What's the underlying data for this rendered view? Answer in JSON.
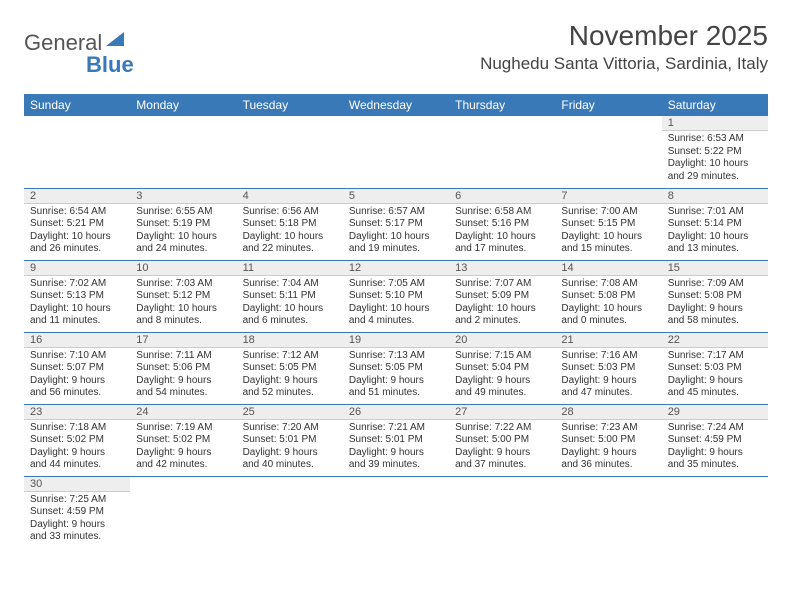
{
  "logo": {
    "part1": "General",
    "part2": "Blue"
  },
  "title": "November 2025",
  "location": "Nughedu Santa Vittoria, Sardinia, Italy",
  "colors": {
    "header_bg": "#3a79b7",
    "header_text": "#ffffff",
    "daynum_bg": "#eeeeee",
    "rule": "#3a79b7",
    "text": "#333333"
  },
  "weekdays": [
    "Sunday",
    "Monday",
    "Tuesday",
    "Wednesday",
    "Thursday",
    "Friday",
    "Saturday"
  ],
  "rows": [
    [
      null,
      null,
      null,
      null,
      null,
      null,
      {
        "n": "1",
        "sr": "Sunrise: 6:53 AM",
        "ss": "Sunset: 5:22 PM",
        "d1": "Daylight: 10 hours",
        "d2": "and 29 minutes."
      }
    ],
    [
      {
        "n": "2",
        "sr": "Sunrise: 6:54 AM",
        "ss": "Sunset: 5:21 PM",
        "d1": "Daylight: 10 hours",
        "d2": "and 26 minutes."
      },
      {
        "n": "3",
        "sr": "Sunrise: 6:55 AM",
        "ss": "Sunset: 5:19 PM",
        "d1": "Daylight: 10 hours",
        "d2": "and 24 minutes."
      },
      {
        "n": "4",
        "sr": "Sunrise: 6:56 AM",
        "ss": "Sunset: 5:18 PM",
        "d1": "Daylight: 10 hours",
        "d2": "and 22 minutes."
      },
      {
        "n": "5",
        "sr": "Sunrise: 6:57 AM",
        "ss": "Sunset: 5:17 PM",
        "d1": "Daylight: 10 hours",
        "d2": "and 19 minutes."
      },
      {
        "n": "6",
        "sr": "Sunrise: 6:58 AM",
        "ss": "Sunset: 5:16 PM",
        "d1": "Daylight: 10 hours",
        "d2": "and 17 minutes."
      },
      {
        "n": "7",
        "sr": "Sunrise: 7:00 AM",
        "ss": "Sunset: 5:15 PM",
        "d1": "Daylight: 10 hours",
        "d2": "and 15 minutes."
      },
      {
        "n": "8",
        "sr": "Sunrise: 7:01 AM",
        "ss": "Sunset: 5:14 PM",
        "d1": "Daylight: 10 hours",
        "d2": "and 13 minutes."
      }
    ],
    [
      {
        "n": "9",
        "sr": "Sunrise: 7:02 AM",
        "ss": "Sunset: 5:13 PM",
        "d1": "Daylight: 10 hours",
        "d2": "and 11 minutes."
      },
      {
        "n": "10",
        "sr": "Sunrise: 7:03 AM",
        "ss": "Sunset: 5:12 PM",
        "d1": "Daylight: 10 hours",
        "d2": "and 8 minutes."
      },
      {
        "n": "11",
        "sr": "Sunrise: 7:04 AM",
        "ss": "Sunset: 5:11 PM",
        "d1": "Daylight: 10 hours",
        "d2": "and 6 minutes."
      },
      {
        "n": "12",
        "sr": "Sunrise: 7:05 AM",
        "ss": "Sunset: 5:10 PM",
        "d1": "Daylight: 10 hours",
        "d2": "and 4 minutes."
      },
      {
        "n": "13",
        "sr": "Sunrise: 7:07 AM",
        "ss": "Sunset: 5:09 PM",
        "d1": "Daylight: 10 hours",
        "d2": "and 2 minutes."
      },
      {
        "n": "14",
        "sr": "Sunrise: 7:08 AM",
        "ss": "Sunset: 5:08 PM",
        "d1": "Daylight: 10 hours",
        "d2": "and 0 minutes."
      },
      {
        "n": "15",
        "sr": "Sunrise: 7:09 AM",
        "ss": "Sunset: 5:08 PM",
        "d1": "Daylight: 9 hours",
        "d2": "and 58 minutes."
      }
    ],
    [
      {
        "n": "16",
        "sr": "Sunrise: 7:10 AM",
        "ss": "Sunset: 5:07 PM",
        "d1": "Daylight: 9 hours",
        "d2": "and 56 minutes."
      },
      {
        "n": "17",
        "sr": "Sunrise: 7:11 AM",
        "ss": "Sunset: 5:06 PM",
        "d1": "Daylight: 9 hours",
        "d2": "and 54 minutes."
      },
      {
        "n": "18",
        "sr": "Sunrise: 7:12 AM",
        "ss": "Sunset: 5:05 PM",
        "d1": "Daylight: 9 hours",
        "d2": "and 52 minutes."
      },
      {
        "n": "19",
        "sr": "Sunrise: 7:13 AM",
        "ss": "Sunset: 5:05 PM",
        "d1": "Daylight: 9 hours",
        "d2": "and 51 minutes."
      },
      {
        "n": "20",
        "sr": "Sunrise: 7:15 AM",
        "ss": "Sunset: 5:04 PM",
        "d1": "Daylight: 9 hours",
        "d2": "and 49 minutes."
      },
      {
        "n": "21",
        "sr": "Sunrise: 7:16 AM",
        "ss": "Sunset: 5:03 PM",
        "d1": "Daylight: 9 hours",
        "d2": "and 47 minutes."
      },
      {
        "n": "22",
        "sr": "Sunrise: 7:17 AM",
        "ss": "Sunset: 5:03 PM",
        "d1": "Daylight: 9 hours",
        "d2": "and 45 minutes."
      }
    ],
    [
      {
        "n": "23",
        "sr": "Sunrise: 7:18 AM",
        "ss": "Sunset: 5:02 PM",
        "d1": "Daylight: 9 hours",
        "d2": "and 44 minutes."
      },
      {
        "n": "24",
        "sr": "Sunrise: 7:19 AM",
        "ss": "Sunset: 5:02 PM",
        "d1": "Daylight: 9 hours",
        "d2": "and 42 minutes."
      },
      {
        "n": "25",
        "sr": "Sunrise: 7:20 AM",
        "ss": "Sunset: 5:01 PM",
        "d1": "Daylight: 9 hours",
        "d2": "and 40 minutes."
      },
      {
        "n": "26",
        "sr": "Sunrise: 7:21 AM",
        "ss": "Sunset: 5:01 PM",
        "d1": "Daylight: 9 hours",
        "d2": "and 39 minutes."
      },
      {
        "n": "27",
        "sr": "Sunrise: 7:22 AM",
        "ss": "Sunset: 5:00 PM",
        "d1": "Daylight: 9 hours",
        "d2": "and 37 minutes."
      },
      {
        "n": "28",
        "sr": "Sunrise: 7:23 AM",
        "ss": "Sunset: 5:00 PM",
        "d1": "Daylight: 9 hours",
        "d2": "and 36 minutes."
      },
      {
        "n": "29",
        "sr": "Sunrise: 7:24 AM",
        "ss": "Sunset: 4:59 PM",
        "d1": "Daylight: 9 hours",
        "d2": "and 35 minutes."
      }
    ],
    [
      {
        "n": "30",
        "sr": "Sunrise: 7:25 AM",
        "ss": "Sunset: 4:59 PM",
        "d1": "Daylight: 9 hours",
        "d2": "and 33 minutes."
      },
      null,
      null,
      null,
      null,
      null,
      null
    ]
  ]
}
